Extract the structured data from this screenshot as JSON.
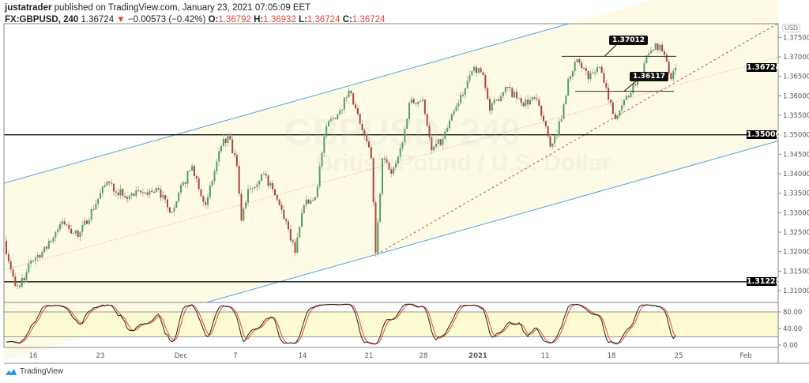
{
  "header": {
    "author": "justatrader",
    "published_text": "published on TradingView.com, January 23, 2021 07:05:09 EET",
    "symbol": "FX:GBPUSD, 240",
    "last": "1.36724",
    "change": "−0.00573 (−0.42%)",
    "change_direction": "down",
    "o_label": "O:",
    "o": "1.36792",
    "h_label": "H:",
    "h": "1.36932",
    "l_label": "L:",
    "l": "1.36724",
    "c_label": "C:",
    "c": "1.36724"
  },
  "watermark": {
    "symbol": "GBPUSD, 240",
    "name": "British Pound / U.S. Dollar"
  },
  "price_axis": {
    "currency": "USD",
    "ticks": [
      "1.31000",
      "1.31500",
      "1.32000",
      "1.32500",
      "1.33000",
      "1.33500",
      "1.34000",
      "1.34500",
      "1.35000",
      "1.35500",
      "1.36000",
      "1.36500",
      "1.37000",
      "1.37500"
    ],
    "markers": [
      {
        "label": "1.36724",
        "kind": "last"
      },
      {
        "label": "1.35000",
        "kind": "hline"
      },
      {
        "label": "1.31228",
        "kind": "hline"
      }
    ]
  },
  "oscillator_axis": {
    "ticks": [
      "80.00",
      "40.00",
      "0.00"
    ],
    "band": [
      20,
      80
    ]
  },
  "time_axis": {
    "ticks": [
      "16",
      "23",
      "Dec",
      "7",
      "14",
      "21",
      "28",
      "2021",
      "11",
      "18",
      "25",
      "Feb"
    ]
  },
  "annotations": [
    {
      "label": "1.37012",
      "price": 1.37012
    },
    {
      "label": "1.36117",
      "price": 1.36117
    }
  ],
  "colors": {
    "up": "#4e9f63",
    "down": "#a94438",
    "channel": "#4aa3e0",
    "channel_fill": "#fdfbe6",
    "midline": "#f0a090",
    "trendline": "#c0504d",
    "stoch_k": "#222222",
    "stoch_d": "#e8452c",
    "osc_band": "#fdfbd2"
  },
  "chart_data": {
    "type": "candlestick",
    "timeframe": "240",
    "price_range": [
      1.3085,
      1.3785
    ],
    "hlines": [
      1.35,
      1.31228
    ],
    "path": [
      [
        "2020-11-11 20:00",
        1.3228
      ],
      [
        "2020-11-12 16:00",
        1.3112
      ],
      [
        "2020-11-13 08:00",
        1.3127
      ],
      [
        "2020-11-13 20:00",
        1.3177
      ],
      [
        "2020-11-17 00:00",
        1.3208
      ],
      [
        "2020-11-18 04:00",
        1.3278
      ],
      [
        "2020-11-19 08:00",
        1.3238
      ],
      [
        "2020-11-23 12:00",
        1.338
      ],
      [
        "2020-11-24 20:00",
        1.334
      ],
      [
        "2020-11-27 08:00",
        1.336
      ],
      [
        "2020-11-30 04:00",
        1.33
      ],
      [
        "2020-12-01 20:00",
        1.342
      ],
      [
        "2020-12-02 20:00",
        1.332
      ],
      [
        "2020-12-04 00:00",
        1.3471
      ],
      [
        "2020-12-04 12:00",
        1.3497
      ],
      [
        "2020-12-07 04:00",
        1.342
      ],
      [
        "2020-12-07 12:00",
        1.328
      ],
      [
        "2020-12-08 00:00",
        1.336
      ],
      [
        "2020-12-09 04:00",
        1.34
      ],
      [
        "2020-12-10 08:00",
        1.332
      ],
      [
        "2020-12-11 00:00",
        1.3258
      ],
      [
        "2020-12-11 12:00",
        1.3197
      ],
      [
        "2020-12-14 04:00",
        1.332
      ],
      [
        "2020-12-15 00:00",
        1.334
      ],
      [
        "2020-12-15 20:00",
        1.3522
      ],
      [
        "2020-12-16 20:00",
        1.3562
      ],
      [
        "2020-12-17 12:00",
        1.3613
      ],
      [
        "2020-12-18 12:00",
        1.3512
      ],
      [
        "2020-12-21 04:00",
        1.344
      ],
      [
        "2020-12-21 12:00",
        1.3197
      ],
      [
        "2020-12-22 00:00",
        1.344
      ],
      [
        "2020-12-22 16:00",
        1.34
      ],
      [
        "2020-12-23 12:00",
        1.348
      ],
      [
        "2020-12-24 00:00",
        1.3582
      ],
      [
        "2020-12-28 00:00",
        1.359
      ],
      [
        "2020-12-28 16:00",
        1.346
      ],
      [
        "2020-12-29 12:00",
        1.349
      ],
      [
        "2020-12-30 16:00",
        1.3582
      ],
      [
        "2020-12-31 20:00",
        1.3674
      ],
      [
        "2021-01-04 12:00",
        1.3653
      ],
      [
        "2021-01-05 00:00",
        1.3562
      ],
      [
        "2021-01-06 04:00",
        1.3623
      ],
      [
        "2021-01-07 08:00",
        1.3582
      ],
      [
        "2021-01-08 12:00",
        1.359
      ],
      [
        "2021-01-11 04:00",
        1.3522
      ],
      [
        "2021-01-11 12:00",
        1.347
      ],
      [
        "2021-01-12 08:00",
        1.354
      ],
      [
        "2021-01-12 20:00",
        1.3643
      ],
      [
        "2021-01-13 12:00",
        1.3694
      ],
      [
        "2021-01-14 08:00",
        1.3643
      ],
      [
        "2021-01-15 04:00",
        1.3674
      ],
      [
        "2021-01-15 20:00",
        1.359
      ],
      [
        "2021-01-18 08:00",
        1.354
      ],
      [
        "2021-01-19 00:00",
        1.359
      ],
      [
        "2021-01-19 20:00",
        1.3627
      ],
      [
        "2021-01-20 12:00",
        1.3684
      ],
      [
        "2021-01-21 08:00",
        1.3734
      ],
      [
        "2021-01-21 20:00",
        1.3714
      ],
      [
        "2021-01-22 12:00",
        1.3643
      ],
      [
        "2021-01-22 20:00",
        1.36724
      ]
    ]
  },
  "footer": {
    "brand": "TradingView"
  }
}
